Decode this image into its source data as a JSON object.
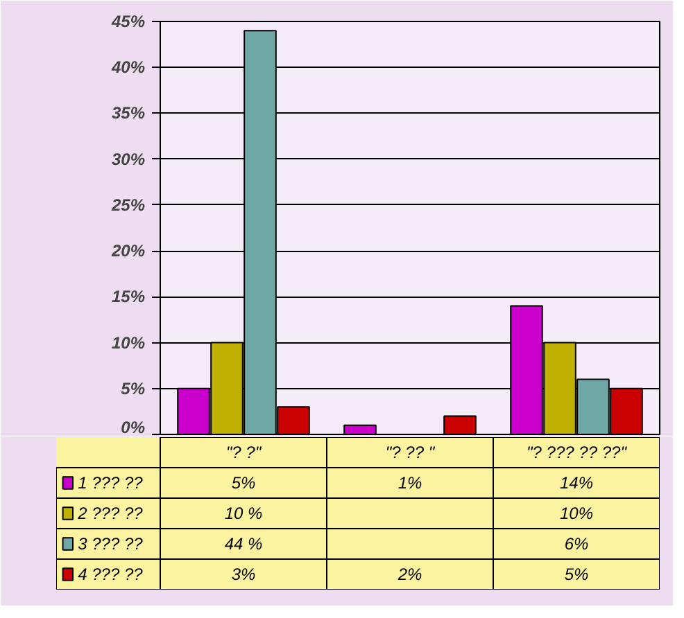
{
  "chart_data": {
    "type": "bar",
    "categories": [
      "\"? ?\"",
      "\"? ?? \"",
      "\"? ??? ?? ??\""
    ],
    "series": [
      {
        "name": "1 ??? ??",
        "color": "#cc00cc",
        "values": [
          5,
          1,
          14
        ],
        "value_labels": [
          "5%",
          "1%",
          "14%"
        ]
      },
      {
        "name": "2 ??? ??",
        "color": "#c0b000",
        "values": [
          10,
          null,
          10
        ],
        "value_labels": [
          "10 %",
          null,
          "10%"
        ]
      },
      {
        "name": "3 ??? ??",
        "color": "#70a8a8",
        "values": [
          44,
          null,
          6
        ],
        "value_labels": [
          "44 %",
          null,
          "6%"
        ]
      },
      {
        "name": "4 ??? ??",
        "color": "#cc0000",
        "values": [
          3,
          2,
          5
        ],
        "value_labels": [
          "3%",
          "2%",
          "5%"
        ]
      }
    ],
    "ylim": [
      0,
      45
    ],
    "yticks": [
      {
        "value": 0,
        "label": "0%"
      },
      {
        "value": 5,
        "label": "5%"
      },
      {
        "value": 10,
        "label": "10%"
      },
      {
        "value": 15,
        "label": "15%"
      },
      {
        "value": 20,
        "label": "20%"
      },
      {
        "value": 25,
        "label": "25%"
      },
      {
        "value": 30,
        "label": "30%"
      },
      {
        "value": 35,
        "label": "35%"
      },
      {
        "value": 40,
        "label": "40%"
      },
      {
        "value": 45,
        "label": "45%"
      }
    ],
    "grid": "y",
    "legend": "bottom"
  }
}
